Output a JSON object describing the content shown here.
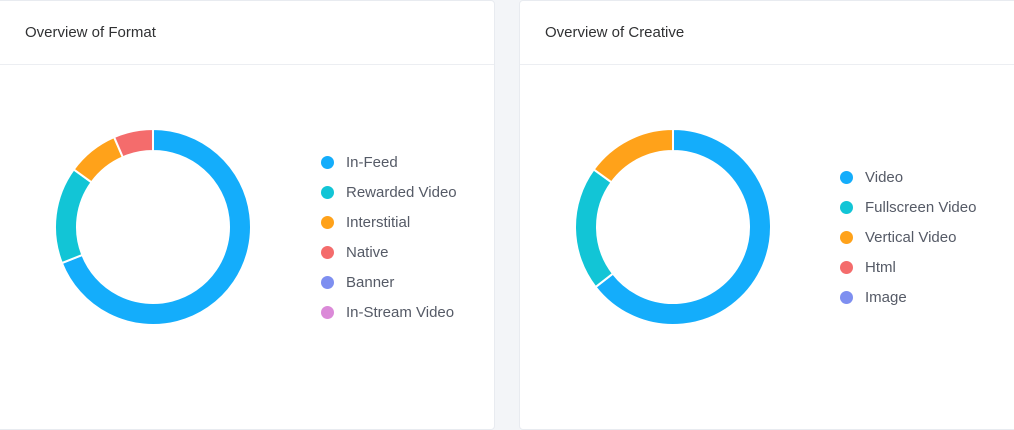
{
  "cards": [
    {
      "id": "format",
      "title": "Overview of Format"
    },
    {
      "id": "creative",
      "title": "Overview of Creative"
    }
  ],
  "colors": {
    "blue": "#14adfb",
    "teal": "#12c5d6",
    "orange": "#ffa21a",
    "red": "#f46c6c",
    "indigo": "#7e8ff0",
    "pink": "#db8ad8"
  },
  "chart_data": [
    {
      "type": "pie",
      "title": "Overview of Format",
      "hole": true,
      "legend_position": "right",
      "categories": [
        "In-Feed",
        "Rewarded Video",
        "Interstitial",
        "Native",
        "Banner",
        "In-Stream Video"
      ],
      "values": [
        69,
        16,
        8.5,
        6.5,
        0,
        0
      ],
      "colors": [
        "#14adfb",
        "#12c5d6",
        "#ffa21a",
        "#f46c6c",
        "#7e8ff0",
        "#db8ad8"
      ]
    },
    {
      "type": "pie",
      "title": "Overview of Creative",
      "hole": true,
      "legend_position": "right",
      "categories": [
        "Video",
        "Fullscreen Video",
        "Vertical Video",
        "Html",
        "Image"
      ],
      "values": [
        64.5,
        20.5,
        15,
        0,
        0
      ],
      "colors": [
        "#14adfb",
        "#12c5d6",
        "#ffa21a",
        "#f46c6c",
        "#7e8ff0"
      ]
    }
  ]
}
